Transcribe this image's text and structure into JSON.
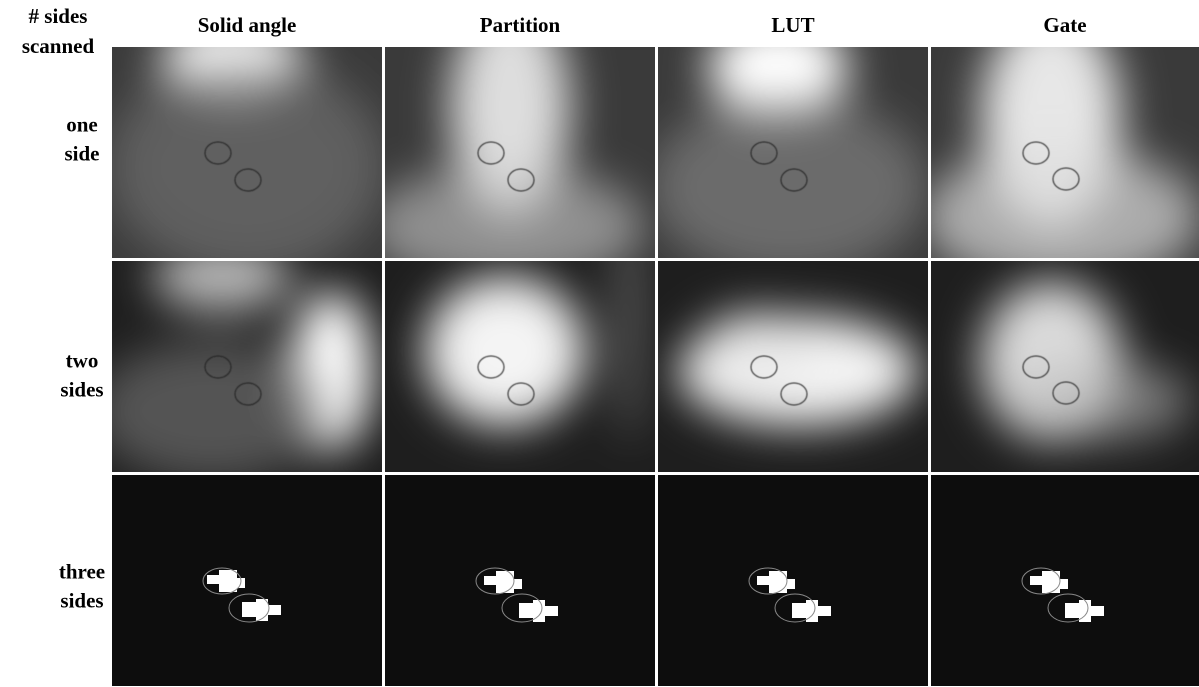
{
  "header": {
    "corner": [
      "# sides",
      "scanned"
    ],
    "columns": [
      "Solid angle",
      "Partition",
      "LUT",
      "Gate"
    ]
  },
  "rows": [
    [
      "one",
      "side"
    ],
    [
      "two",
      "sides"
    ],
    [
      "three",
      "sides"
    ]
  ]
}
